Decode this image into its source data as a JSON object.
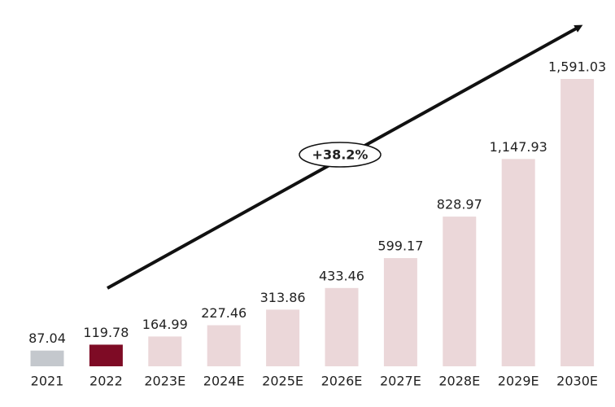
{
  "chart_data": {
    "type": "bar",
    "categories": [
      "2021",
      "2022",
      "2023E",
      "2024E",
      "2025E",
      "2026E",
      "2027E",
      "2028E",
      "2029E",
      "2030E"
    ],
    "values": [
      87.04,
      119.78,
      164.99,
      227.46,
      313.86,
      433.46,
      599.17,
      828.97,
      1147.93,
      1591.03
    ],
    "value_labels": [
      "87.04",
      "119.78",
      "164.99",
      "227.46",
      "313.86",
      "433.46",
      "599.17",
      "828.97",
      "1,147.93",
      "1,591.03"
    ],
    "colors": [
      "#c4c8cd",
      "#7e0b25",
      "#ebd7d9",
      "#ebd7d9",
      "#ebd7d9",
      "#ebd7d9",
      "#ebd7d9",
      "#ebd7d9",
      "#ebd7d9",
      "#ebd7d9"
    ],
    "annotation": "+38.2%"
  }
}
